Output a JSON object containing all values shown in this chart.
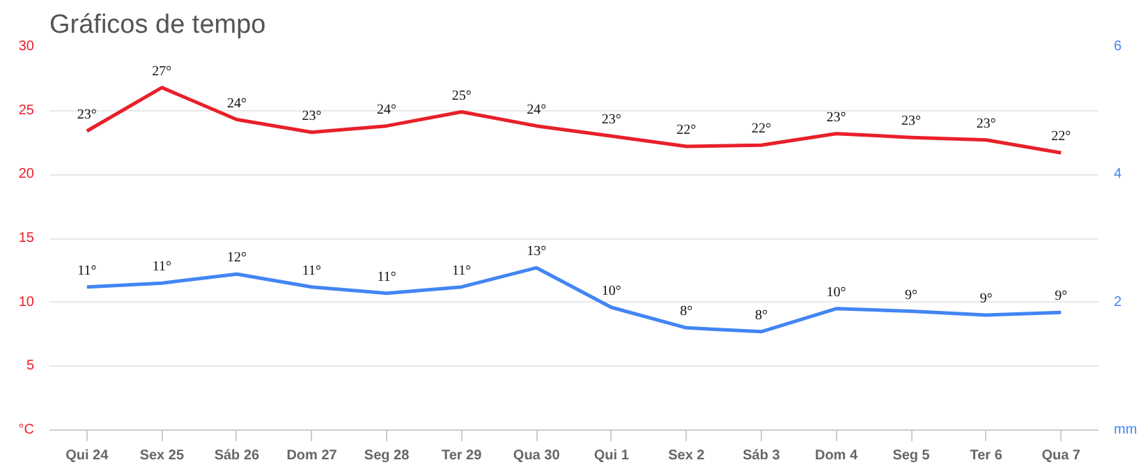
{
  "chart_data": {
    "type": "line",
    "title": "Gráficos de tempo",
    "categories": [
      "Qui 24",
      "Sex 25",
      "Sáb 26",
      "Dom 27",
      "Seg 28",
      "Ter 29",
      "Qua 30",
      "Qui 1",
      "Sex 2",
      "Sáb 3",
      "Dom 4",
      "Seg 5",
      "Ter 6",
      "Qua 7"
    ],
    "series": [
      {
        "color": "#e8202a",
        "values": [
          23.4,
          26.8,
          24.3,
          23.3,
          23.8,
          24.9,
          23.8,
          23.0,
          22.2,
          22.3,
          23.2,
          22.9,
          22.7,
          21.7
        ],
        "value_labels": [
          "23°",
          "27°",
          "24°",
          "23°",
          "24°",
          "25°",
          "24°",
          "23°",
          "22°",
          "22°",
          "23°",
          "23°",
          "23°",
          "22°"
        ]
      },
      {
        "color": "#4285f4",
        "values": [
          11.2,
          11.5,
          12.2,
          11.2,
          10.7,
          11.2,
          12.7,
          9.6,
          8.0,
          7.7,
          9.5,
          9.3,
          9.0,
          9.2
        ],
        "value_labels": [
          "11°",
          "11°",
          "12°",
          "11°",
          "11°",
          "11°",
          "13°",
          "10°",
          "8°",
          "8°",
          "10°",
          "9°",
          "9°",
          "9°"
        ]
      }
    ],
    "ylim": [
      0,
      30
    ],
    "yticks": [
      {
        "value": 0,
        "label": "°C"
      },
      5,
      10,
      15,
      20,
      25,
      30
    ],
    "y2lim": [
      0,
      6
    ],
    "y2ticks": [
      {
        "value": 0,
        "label": "mm"
      },
      2,
      4,
      6
    ],
    "grid": "y"
  }
}
